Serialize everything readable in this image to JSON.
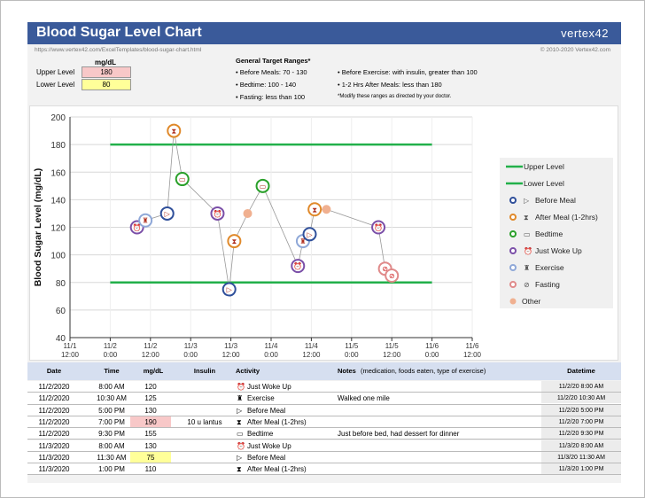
{
  "header": {
    "title": "Blood Sugar Level Chart",
    "logo": "vertex42",
    "url": "https://www.vertex42.com/ExcelTemplates/blood-sugar-chart.html",
    "copyright": "© 2010-2020 Vertex42.com"
  },
  "levels": {
    "unit_label": "mg/dL",
    "upper_label": "Upper Level",
    "upper_value": "180",
    "lower_label": "Lower Level",
    "lower_value": "80",
    "upper_color": "#f8c8c8",
    "lower_color": "#ffff99"
  },
  "targets": {
    "title": "General Target Ranges*",
    "items": [
      "• Before Meals: 70 - 130",
      "• Bedtime: 100 - 140",
      "• Fasting: less than 100",
      "• Before Exercise: with insulin, greater than 100",
      "• 1-2 Hrs After Meals: less than 180"
    ],
    "note": "*Modify these ranges as directed by your doctor."
  },
  "chart_data": {
    "type": "scatter",
    "ylabel": "Blood Sugar Level (mg/dL)",
    "ylim": [
      40,
      200
    ],
    "yticks": [
      40,
      60,
      80,
      100,
      120,
      140,
      160,
      180,
      200
    ],
    "xticks": [
      "11/1 12:00",
      "11/2 0:00",
      "11/2 12:00",
      "11/3 0:00",
      "11/3 12:00",
      "11/4 0:00",
      "11/4 12:00",
      "11/5 0:00",
      "11/5 12:00",
      "11/6 0:00",
      "11/6 12:00"
    ],
    "xlim": [
      "11/1 12:00",
      "11/6 12:00"
    ],
    "grid": true,
    "legend": "right",
    "reference_lines": [
      {
        "name": "Upper Level",
        "value": 180,
        "from": "11/2 0:00",
        "to": "11/6 0:00",
        "color": "#22b04a"
      },
      {
        "name": "Lower Level",
        "value": 80,
        "from": "11/2 0:00",
        "to": "11/6 0:00",
        "color": "#22b04a"
      }
    ],
    "categories": [
      {
        "name": "Before Meal",
        "color": "#2f4f9a"
      },
      {
        "name": "After Meal (1-2hrs)",
        "color": "#e0892a"
      },
      {
        "name": "Bedtime",
        "color": "#2aa02a"
      },
      {
        "name": "Just Woke Up",
        "color": "#7b4fa8"
      },
      {
        "name": "Exercise",
        "color": "#8fa8d8"
      },
      {
        "name": "Fasting",
        "color": "#e08a8a"
      },
      {
        "name": "Other",
        "color": "#f0b090"
      }
    ],
    "points": [
      {
        "x": "11/2 8:00",
        "y": 120,
        "cat": "Just Woke Up"
      },
      {
        "x": "11/2 10:30",
        "y": 125,
        "cat": "Exercise"
      },
      {
        "x": "11/2 17:00",
        "y": 130,
        "cat": "Before Meal"
      },
      {
        "x": "11/2 19:00",
        "y": 190,
        "cat": "After Meal (1-2hrs)"
      },
      {
        "x": "11/2 21:30",
        "y": 155,
        "cat": "Bedtime"
      },
      {
        "x": "11/3 8:00",
        "y": 130,
        "cat": "Just Woke Up"
      },
      {
        "x": "11/3 11:30",
        "y": 75,
        "cat": "Before Meal"
      },
      {
        "x": "11/3 13:00",
        "y": 110,
        "cat": "After Meal (1-2hrs)"
      },
      {
        "x": "11/3 17:00",
        "y": 130,
        "cat": "Other"
      },
      {
        "x": "11/3 21:30",
        "y": 150,
        "cat": "Bedtime"
      },
      {
        "x": "11/4 8:00",
        "y": 92,
        "cat": "Just Woke Up"
      },
      {
        "x": "11/4 9:30",
        "y": 110,
        "cat": "Exercise"
      },
      {
        "x": "11/4 11:30",
        "y": 115,
        "cat": "Before Meal"
      },
      {
        "x": "11/4 13:00",
        "y": 133,
        "cat": "After Meal (1-2hrs)"
      },
      {
        "x": "11/4 16:30",
        "y": 133,
        "cat": "Other"
      },
      {
        "x": "11/5 8:00",
        "y": 120,
        "cat": "Just Woke Up"
      },
      {
        "x": "11/5 10:00",
        "y": 90,
        "cat": "Fasting"
      },
      {
        "x": "11/5 12:00",
        "y": 85,
        "cat": "Fasting"
      }
    ]
  },
  "table": {
    "headers": {
      "date": "Date",
      "time": "Time",
      "mgdl": "mg/dL",
      "insulin": "Insulin",
      "activity": "Activity",
      "notes": "Notes",
      "notes_hint": "(medication, foods eaten, type of exercise)",
      "datetime": "Datetime"
    },
    "rows": [
      {
        "date": "11/2/2020",
        "time": "8:00 AM",
        "mgdl": "120",
        "insulin": "",
        "activity": "Just Woke Up",
        "notes": "",
        "datetime": "11/2/20 8:00 AM",
        "flag": ""
      },
      {
        "date": "11/2/2020",
        "time": "10:30 AM",
        "mgdl": "125",
        "insulin": "",
        "activity": "Exercise",
        "notes": "Walked one mile",
        "datetime": "11/2/20 10:30 AM",
        "flag": ""
      },
      {
        "date": "11/2/2020",
        "time": "5:00 PM",
        "mgdl": "130",
        "insulin": "",
        "activity": "Before Meal",
        "notes": "",
        "datetime": "11/2/20 5:00 PM",
        "flag": ""
      },
      {
        "date": "11/2/2020",
        "time": "7:00 PM",
        "mgdl": "190",
        "insulin": "10 u lantus",
        "activity": "After Meal (1-2hrs)",
        "notes": "",
        "datetime": "11/2/20 7:00 PM",
        "flag": "high"
      },
      {
        "date": "11/2/2020",
        "time": "9:30 PM",
        "mgdl": "155",
        "insulin": "",
        "activity": "Bedtime",
        "notes": "Just before bed, had dessert for dinner",
        "datetime": "11/2/20 9:30 PM",
        "flag": ""
      },
      {
        "date": "11/3/2020",
        "time": "8:00 AM",
        "mgdl": "130",
        "insulin": "",
        "activity": "Just Woke Up",
        "notes": "",
        "datetime": "11/3/20 8:00 AM",
        "flag": ""
      },
      {
        "date": "11/3/2020",
        "time": "11:30 AM",
        "mgdl": "75",
        "insulin": "",
        "activity": "Before Meal",
        "notes": "",
        "datetime": "11/3/20 11:30 AM",
        "flag": "low"
      },
      {
        "date": "11/3/2020",
        "time": "1:00 PM",
        "mgdl": "110",
        "insulin": "",
        "activity": "After Meal (1-2hrs)",
        "notes": "",
        "datetime": "11/3/20 1:00 PM",
        "flag": ""
      }
    ]
  }
}
